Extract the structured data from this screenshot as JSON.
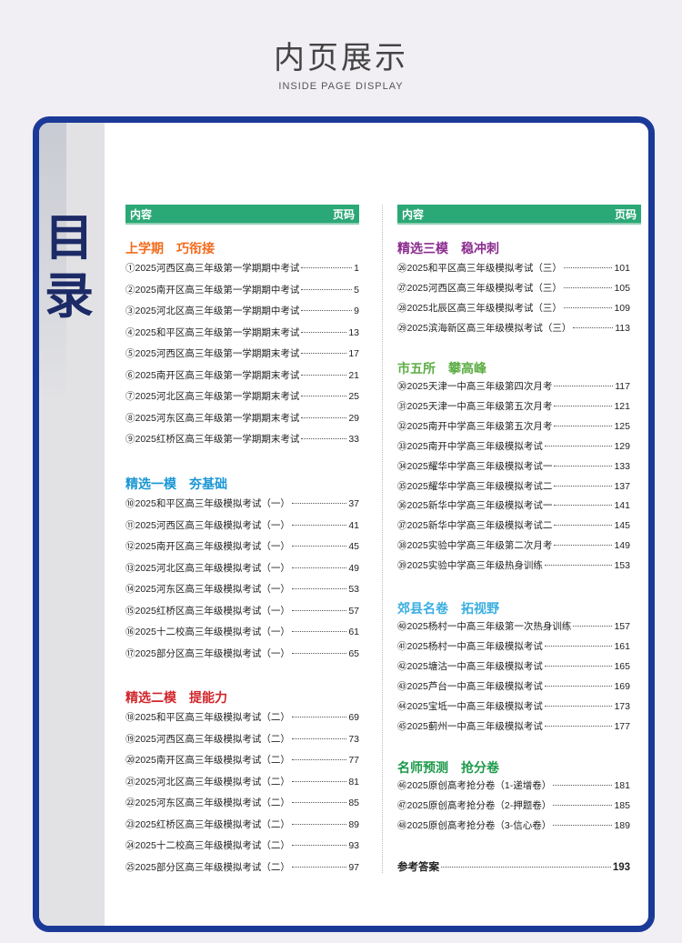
{
  "header": {
    "title": "内页展示",
    "subtitle": "INSIDE PAGE DISPLAY"
  },
  "side_label": "目录",
  "table_header": {
    "content": "内容",
    "page": "页码"
  },
  "colors": {
    "frame": "#1b3a98",
    "header_bar": "#2aa876"
  },
  "left_sections": [
    {
      "title": "上学期　巧衔接",
      "color": "#f26b1d",
      "items": [
        {
          "t": "①2025河西区高三年级第一学期期中考试",
          "p": "1"
        },
        {
          "t": "②2025南开区高三年级第一学期期中考试",
          "p": "5"
        },
        {
          "t": "③2025河北区高三年级第一学期期中考试",
          "p": "9"
        },
        {
          "t": "④2025和平区高三年级第一学期期末考试",
          "p": "13"
        },
        {
          "t": "⑤2025河西区高三年级第一学期期末考试",
          "p": "17"
        },
        {
          "t": "⑥2025南开区高三年级第一学期期末考试",
          "p": "21"
        },
        {
          "t": "⑦2025河北区高三年级第一学期期末考试",
          "p": "25"
        },
        {
          "t": "⑧2025河东区高三年级第一学期期末考试",
          "p": "29"
        },
        {
          "t": "⑨2025红桥区高三年级第一学期期末考试",
          "p": "33"
        }
      ]
    },
    {
      "title": "精选一模　夯基础",
      "color": "#1a96d4",
      "items": [
        {
          "t": "⑩2025和平区高三年级模拟考试（一）",
          "p": "37"
        },
        {
          "t": "⑪2025河西区高三年级模拟考试（一）",
          "p": "41"
        },
        {
          "t": "⑫2025南开区高三年级模拟考试（一）",
          "p": "45"
        },
        {
          "t": "⑬2025河北区高三年级模拟考试（一）",
          "p": "49"
        },
        {
          "t": "⑭2025河东区高三年级模拟考试（一）",
          "p": "53"
        },
        {
          "t": "⑮2025红桥区高三年级模拟考试（一）",
          "p": "57"
        },
        {
          "t": "⑯2025十二校高三年级模拟考试（一）",
          "p": "61"
        },
        {
          "t": "⑰2025部分区高三年级模拟考试（一）",
          "p": "65"
        }
      ]
    },
    {
      "title": "精选二模　提能力",
      "color": "#d0262b",
      "items": [
        {
          "t": "⑱2025和平区高三年级模拟考试（二）",
          "p": "69"
        },
        {
          "t": "⑲2025河西区高三年级模拟考试（二）",
          "p": "73"
        },
        {
          "t": "⑳2025南开区高三年级模拟考试（二）",
          "p": "77"
        },
        {
          "t": "㉑2025河北区高三年级模拟考试（二）",
          "p": "81"
        },
        {
          "t": "㉒2025河东区高三年级模拟考试（二）",
          "p": "85"
        },
        {
          "t": "㉓2025红桥区高三年级模拟考试（二）",
          "p": "89"
        },
        {
          "t": "㉔2025十二校高三年级模拟考试（二）",
          "p": "93"
        },
        {
          "t": "㉕2025部分区高三年级模拟考试（二）",
          "p": "97"
        }
      ]
    }
  ],
  "right_sections": [
    {
      "title": "精选三模　稳冲刺",
      "color": "#8b2c8f",
      "items": [
        {
          "t": "㉖2025和平区高三年级模拟考试（三）",
          "p": "101"
        },
        {
          "t": "㉗2025河西区高三年级模拟考试（三）",
          "p": "105"
        },
        {
          "t": "㉘2025北辰区高三年级模拟考试（三）",
          "p": "109"
        },
        {
          "t": "㉙2025滨海新区高三年级模拟考试（三）",
          "p": "113"
        }
      ]
    },
    {
      "title": "市五所　攀高峰",
      "color": "#5cae45",
      "items": [
        {
          "t": "㉚2025天津一中高三年级第四次月考",
          "p": "117"
        },
        {
          "t": "㉛2025天津一中高三年级第五次月考",
          "p": "121"
        },
        {
          "t": "㉜2025南开中学高三年级第五次月考",
          "p": "125"
        },
        {
          "t": "㉝2025南开中学高三年级模拟考试",
          "p": "129"
        },
        {
          "t": "㉞2025耀华中学高三年级模拟考试一",
          "p": "133"
        },
        {
          "t": "㉟2025耀华中学高三年级模拟考试二",
          "p": "137"
        },
        {
          "t": "㊱2025新华中学高三年级模拟考试一",
          "p": "141"
        },
        {
          "t": "㊲2025新华中学高三年级模拟考试二",
          "p": "145"
        },
        {
          "t": "㊳2025实验中学高三年级第二次月考",
          "p": "149"
        },
        {
          "t": "㊴2025实验中学高三年级热身训练",
          "p": "153"
        }
      ]
    },
    {
      "title": "郊县名卷　拓视野",
      "color": "#3aaee0",
      "items": [
        {
          "t": "㊵2025杨村一中高三年级第一次热身训练",
          "p": "157"
        },
        {
          "t": "㊶2025杨村一中高三年级模拟考试",
          "p": "161"
        },
        {
          "t": "㊷2025塘沽一中高三年级模拟考试",
          "p": "165"
        },
        {
          "t": "㊸2025芦台一中高三年级模拟考试",
          "p": "169"
        },
        {
          "t": "㊹2025宝坻一中高三年级模拟考试",
          "p": "173"
        },
        {
          "t": "㊺2025蓟州一中高三年级模拟考试",
          "p": "177"
        }
      ]
    },
    {
      "title": "名师预测　抢分卷",
      "color": "#1c9a4a",
      "items": [
        {
          "t": "㊻2025原创高考抢分卷（1-递增卷）",
          "p": "181"
        },
        {
          "t": "㊼2025原创高考抢分卷（2-押题卷）",
          "p": "185"
        },
        {
          "t": "㊽2025原创高考抢分卷（3-信心卷）",
          "p": "189"
        }
      ]
    }
  ],
  "answers": {
    "t": "参考答案",
    "p": "193"
  }
}
